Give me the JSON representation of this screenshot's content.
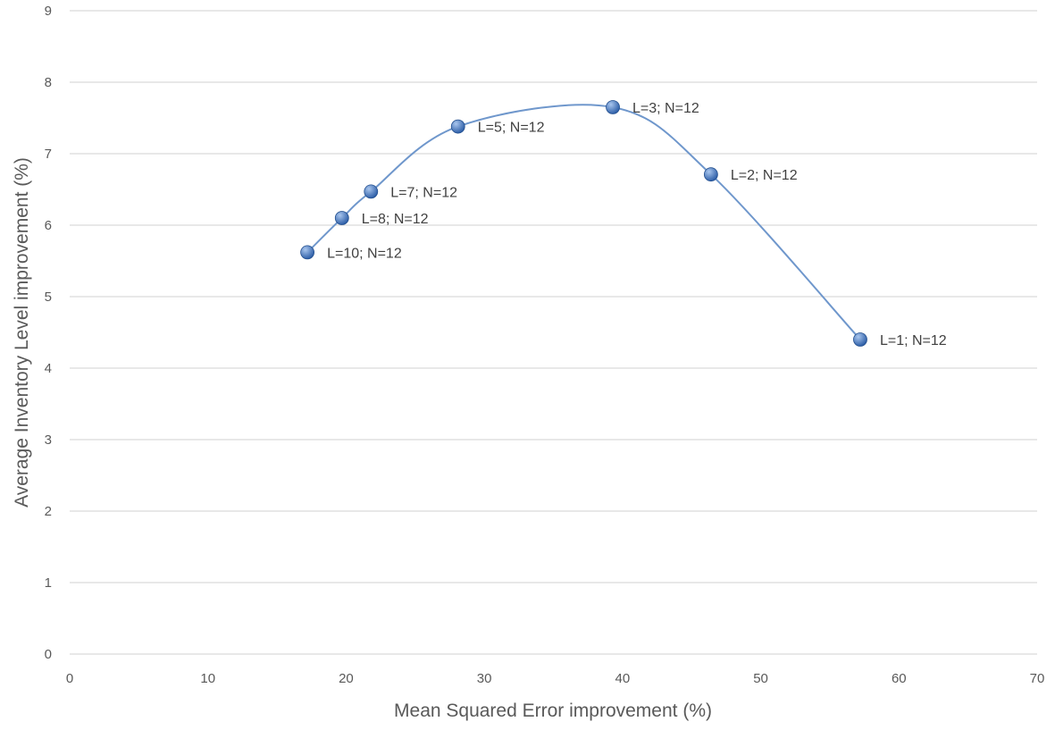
{
  "chart_data": {
    "type": "scatter",
    "title": "",
    "xlabel": "Mean Squared Error improvement (%)",
    "ylabel": "Average Inventory Level improvement (%)",
    "xlim": [
      0,
      70
    ],
    "ylim": [
      0,
      9
    ],
    "xticks": [
      0,
      10,
      20,
      30,
      40,
      50,
      60,
      70
    ],
    "yticks": [
      0,
      1,
      2,
      3,
      4,
      5,
      6,
      7,
      8,
      9
    ],
    "grid": "horizontal",
    "legend": "none",
    "smooth_line": true,
    "series": [
      {
        "points": [
          {
            "x": 17.2,
            "y": 5.62,
            "label": "L=10; N=12"
          },
          {
            "x": 19.7,
            "y": 6.1,
            "label": "L=8; N=12"
          },
          {
            "x": 21.8,
            "y": 6.47,
            "label": "L=7; N=12"
          },
          {
            "x": 28.1,
            "y": 7.38,
            "label": "L=5; N=12"
          },
          {
            "x": 39.3,
            "y": 7.65,
            "label": "L=3; N=12"
          },
          {
            "x": 46.4,
            "y": 6.71,
            "label": "L=2; N=12"
          },
          {
            "x": 57.2,
            "y": 4.4,
            "label": "L=1; N=12"
          }
        ]
      }
    ],
    "colors": {
      "line": "#6f97cc",
      "marker": "#2e5fa8",
      "marker_highlight": "#a9c6ee",
      "grid": "#d9d9d9",
      "text": "#595959"
    }
  }
}
